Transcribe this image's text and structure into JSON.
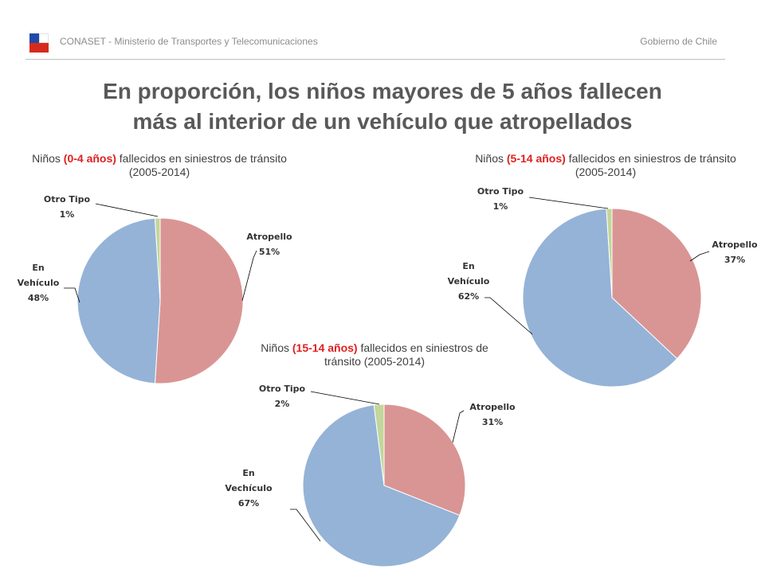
{
  "header": {
    "org": "CONASET - Ministerio de Transportes y Telecomunicaciones",
    "gov": "Gobierno de Chile"
  },
  "title": {
    "line1": "En proporción, los niños mayores de 5 años fallecen",
    "line2": "más al interior de un vehículo que atropellados"
  },
  "colors": {
    "atropello": "#d99594",
    "vehiculo": "#95b3d7",
    "otro": "#c3d69b",
    "highlight": "#e02020"
  },
  "chart_data": [
    {
      "type": "pie",
      "title_pre": "Niños ",
      "title_hl": "(0-4 años)",
      "title_post": " fallecidos en siniestros de tránsito (2005-2014)",
      "slices": [
        {
          "label": "Atropello",
          "value": 51,
          "pct": "51%"
        },
        {
          "label": "En Vehículo",
          "value": 48,
          "pct": "48%"
        },
        {
          "label": "Otro Tipo",
          "value": 1,
          "pct": "1%"
        }
      ]
    },
    {
      "type": "pie",
      "title_pre": "Niños ",
      "title_hl": "(5-14 años)",
      "title_post": " fallecidos en siniestros de tránsito (2005-2014)",
      "slices": [
        {
          "label": "Atropello",
          "value": 37,
          "pct": "37%"
        },
        {
          "label": "En Vehículo",
          "value": 62,
          "pct": "62%"
        },
        {
          "label": "Otro Tipo",
          "value": 1,
          "pct": "1%"
        }
      ]
    },
    {
      "type": "pie",
      "title_pre": "Niños ",
      "title_hl": "(15-14 años)",
      "title_post": " fallecidos en siniestros de tránsito (2005-2014)",
      "slices": [
        {
          "label": "Atropello",
          "value": 31,
          "pct": "31%"
        },
        {
          "label": "En Vechículo",
          "value": 67,
          "pct": "67%"
        },
        {
          "label": "Otro Tipo",
          "value": 2,
          "pct": "2%"
        }
      ]
    }
  ]
}
